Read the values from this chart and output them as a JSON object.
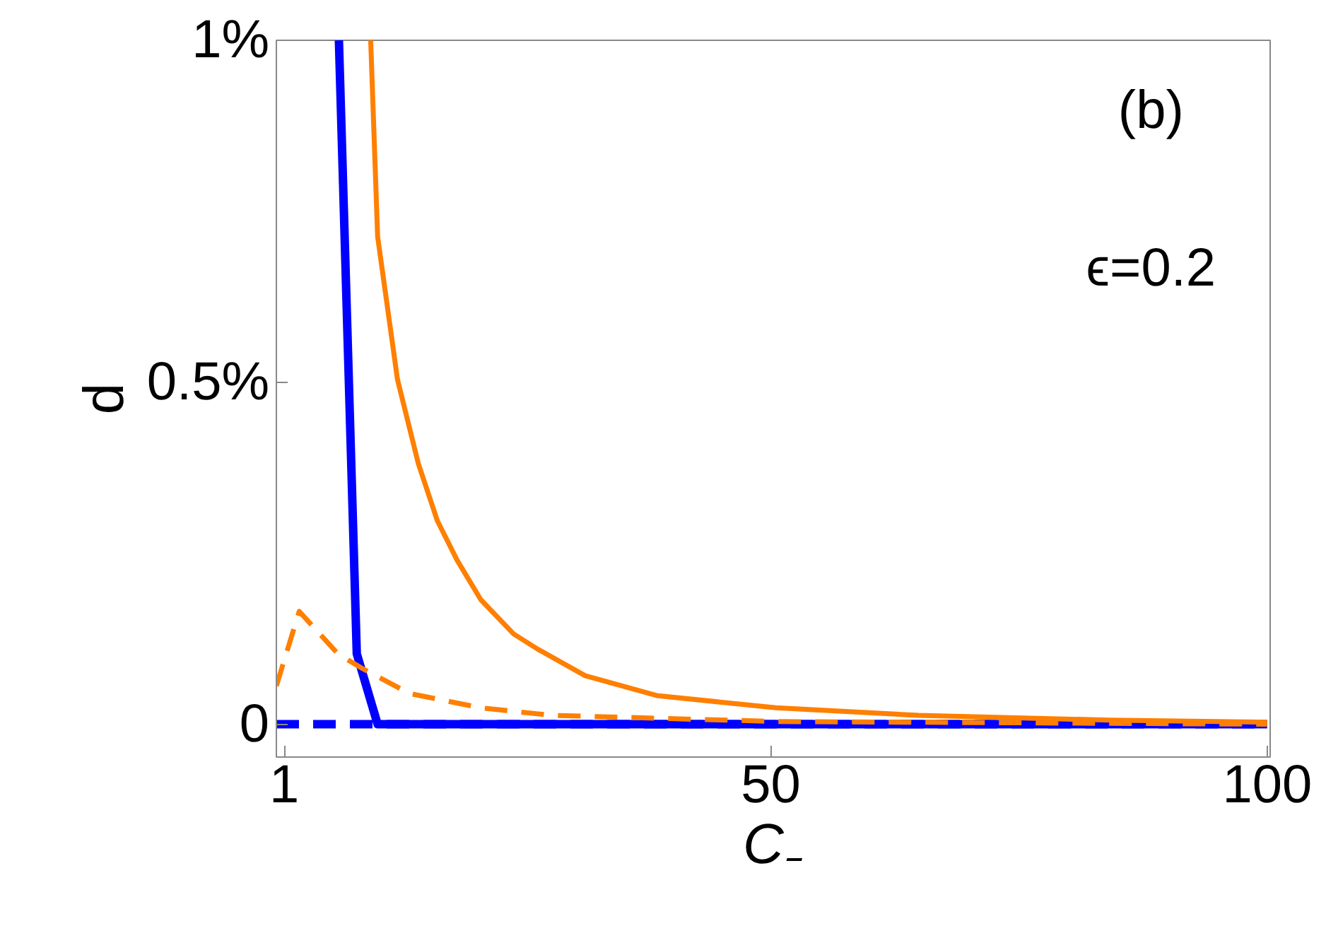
{
  "chart_data": {
    "type": "line",
    "xlabel": "C₋",
    "ylabel": "d",
    "annotations": [
      "(b)",
      "ϵ=0.2"
    ],
    "xlim": [
      0.2,
      100.3
    ],
    "ylim": [
      -0.048,
      1
    ],
    "xticks": [
      1,
      50,
      100
    ],
    "yticks": [
      {
        "value": 0,
        "label": "0"
      },
      {
        "value": 0.5,
        "label": "0.5%"
      },
      {
        "value": 1,
        "label": "1%"
      }
    ],
    "grid": false,
    "series": [
      {
        "color": "#0000ff",
        "line_style": "solid",
        "x": [
          6.5,
          8.3,
          10.4,
          100
        ],
        "values": [
          1.0,
          0.103,
          0,
          0
        ]
      },
      {
        "color": "#0000ff",
        "line_style": "dashed",
        "x": [
          0.2,
          100
        ],
        "values": [
          0,
          0
        ]
      },
      {
        "color": "#ff7f00",
        "line_style": "solid",
        "x": [
          9.7,
          10.4,
          12.4,
          14.5,
          16.4,
          18.4,
          20.8,
          24.1,
          26.5,
          31.3,
          38.5,
          50.5,
          64.9,
          84.1,
          100
        ],
        "values": [
          1.0,
          0.713,
          0.504,
          0.381,
          0.298,
          0.24,
          0.182,
          0.132,
          0.11,
          0.071,
          0.042,
          0.024,
          0.013,
          0.006,
          0.003
        ]
      },
      {
        "color": "#ff7f00",
        "line_style": "dashed",
        "x": [
          0.2,
          2.5,
          6.4,
          8.8,
          13.6,
          20.8,
          27.9,
          50.5,
          100
        ],
        "values": [
          0.056,
          0.165,
          0.103,
          0.082,
          0.045,
          0.024,
          0.013,
          0.004,
          0
        ]
      }
    ]
  }
}
